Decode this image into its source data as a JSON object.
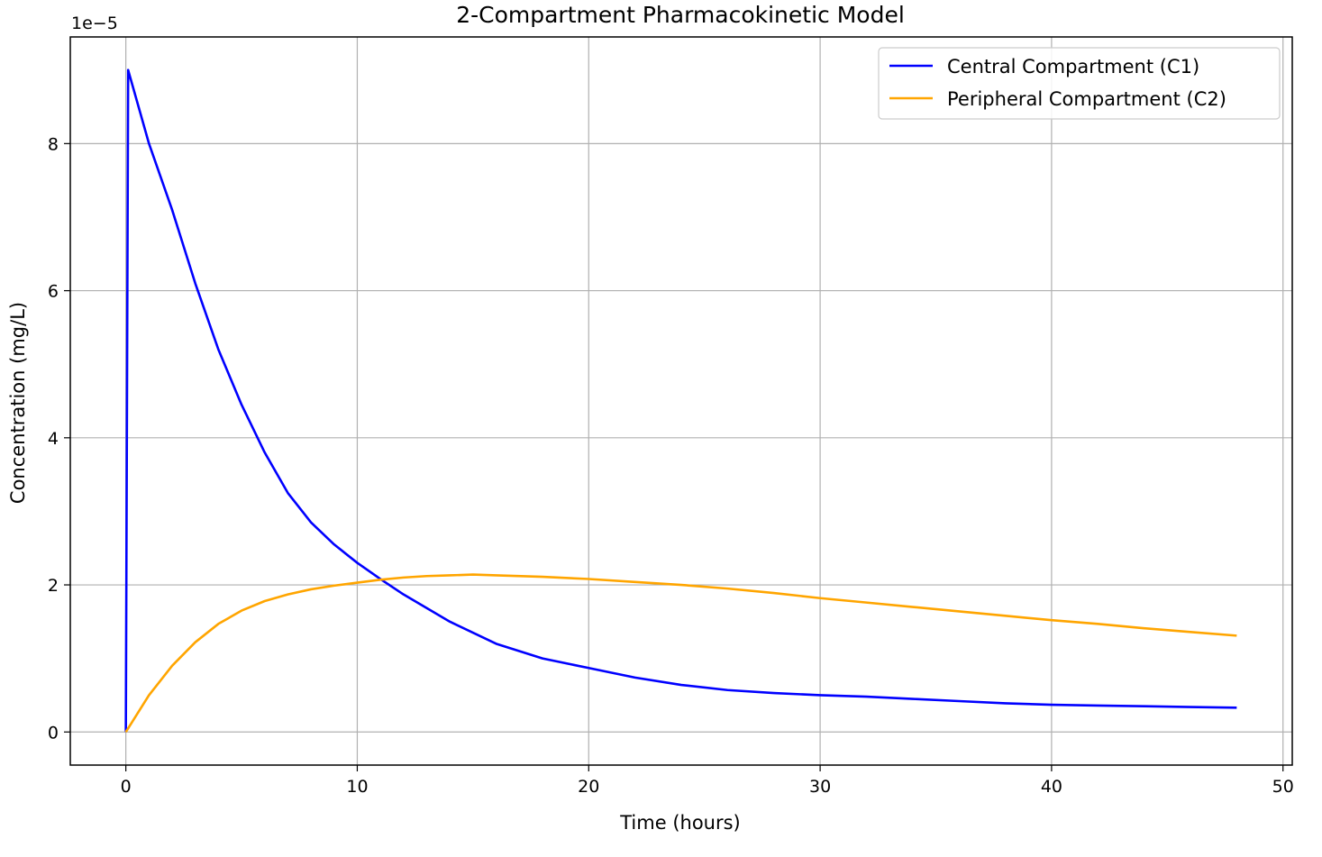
{
  "chart_data": {
    "type": "line",
    "title": "2-Compartment Pharmacokinetic Model",
    "xlabel": "Time (hours)",
    "ylabel": "Concentration (mg/L)",
    "y_offset_text": "1e−5",
    "xlim": [
      -2.4,
      50.4
    ],
    "ylim": [
      -0.45,
      9.45
    ],
    "y_scale_factor": "1e-5",
    "xticks": [
      0,
      10,
      20,
      30,
      40,
      50
    ],
    "yticks": [
      0,
      2,
      4,
      6,
      8
    ],
    "grid": true,
    "legend_position": "upper right",
    "series": [
      {
        "name": "Central Compartment (C1)",
        "color": "#0000ff",
        "x": [
          0,
          0.1,
          1,
          2,
          3,
          4,
          5,
          6,
          7,
          8,
          9,
          10,
          11,
          12,
          14,
          16,
          18,
          20,
          22,
          24,
          26,
          28,
          30,
          32,
          34,
          36,
          38,
          40,
          42,
          44,
          46,
          48
        ],
        "y": [
          0,
          9.0,
          8.0,
          7.1,
          6.1,
          5.2,
          4.45,
          3.8,
          3.25,
          2.85,
          2.55,
          2.3,
          2.08,
          1.87,
          1.5,
          1.2,
          1.0,
          0.87,
          0.74,
          0.64,
          0.57,
          0.53,
          0.5,
          0.48,
          0.45,
          0.42,
          0.39,
          0.37,
          0.36,
          0.35,
          0.34,
          0.33
        ]
      },
      {
        "name": "Peripheral Compartment (C2)",
        "color": "#ffa500",
        "x": [
          0,
          1,
          2,
          3,
          4,
          5,
          6,
          7,
          8,
          9,
          10,
          11,
          12,
          13,
          14,
          15,
          16,
          18,
          20,
          22,
          24,
          26,
          28,
          30,
          32,
          34,
          36,
          38,
          40,
          42,
          44,
          46,
          48
        ],
        "y": [
          0,
          0.5,
          0.9,
          1.22,
          1.47,
          1.65,
          1.78,
          1.87,
          1.94,
          1.99,
          2.03,
          2.07,
          2.1,
          2.12,
          2.13,
          2.14,
          2.13,
          2.11,
          2.08,
          2.04,
          2.0,
          1.95,
          1.89,
          1.82,
          1.76,
          1.7,
          1.64,
          1.58,
          1.52,
          1.47,
          1.41,
          1.36,
          1.31
        ]
      }
    ]
  }
}
